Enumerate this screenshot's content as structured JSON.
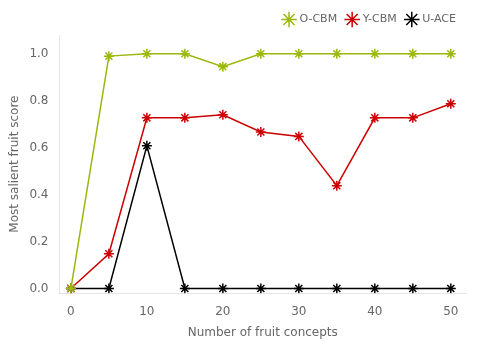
{
  "chart_data": {
    "type": "line",
    "xlabel": "Number of fruit concepts",
    "ylabel": "Most salient fruit score",
    "x": [
      0,
      5,
      10,
      15,
      20,
      25,
      30,
      35,
      40,
      45,
      50
    ],
    "series": [
      {
        "name": "O-CBM",
        "color": "#9ab80e",
        "marker": "star",
        "values": [
          0.0,
          0.99,
          1.0,
          1.0,
          0.945,
          1.0,
          1.0,
          1.0,
          1.0,
          1.0,
          1.0
        ]
      },
      {
        "name": "Y-CBM",
        "color": "#cc0000",
        "marker": "star",
        "values": [
          0.0,
          0.148,
          0.727,
          0.727,
          0.74,
          0.667,
          0.648,
          0.438,
          0.727,
          0.727,
          0.787
        ]
      },
      {
        "name": "U-ACE",
        "color": "#000000",
        "marker": "star",
        "values": [
          0.0,
          0.0,
          0.608,
          0.0,
          0.0,
          0.0,
          0.0,
          0.0,
          0.0,
          0.0,
          0.0
        ]
      }
    ],
    "xlim": [
      -1.5,
      52
    ],
    "ylim": [
      -0.02,
      1.08
    ],
    "xticks": [
      0,
      10,
      20,
      30,
      40,
      50
    ],
    "yticks": [
      {
        "value": 0,
        "label": "0.0"
      },
      {
        "value": 0.2,
        "label": "0.2"
      },
      {
        "value": 0.4,
        "label": "0.4"
      },
      {
        "value": 0.6,
        "label": "0.6"
      },
      {
        "value": 0.8,
        "label": "0.8"
      },
      {
        "value": 1,
        "label": "1.0"
      }
    ],
    "grid": false,
    "legend": "upper right"
  }
}
